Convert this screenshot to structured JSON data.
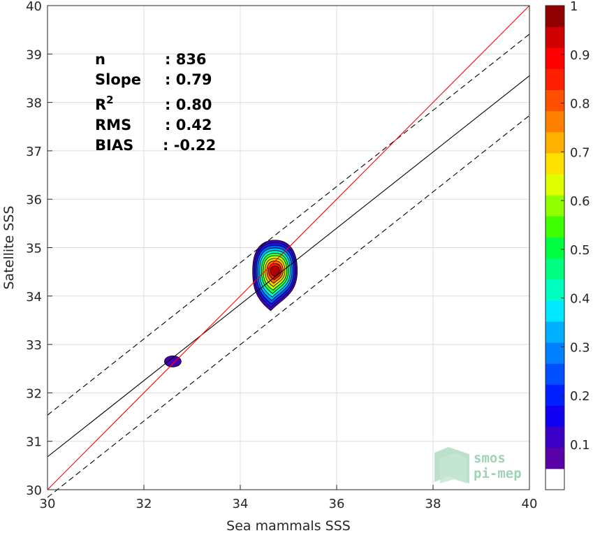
{
  "chart_data": {
    "type": "contour-density-scatter",
    "xlabel": "Sea mammals SSS",
    "ylabel": "Satellite SSS",
    "xlim": [
      30,
      40
    ],
    "ylim": [
      30,
      40
    ],
    "xticks": [
      "30",
      "32",
      "34",
      "36",
      "38",
      "40"
    ],
    "yticks": [
      "30",
      "31",
      "32",
      "33",
      "34",
      "35",
      "36",
      "37",
      "38",
      "39",
      "40"
    ],
    "grid": true,
    "stats": [
      {
        "label": "n",
        "value": ": 836"
      },
      {
        "label": "Slope",
        "value": ": 0.79"
      },
      {
        "label": "R",
        "sup": "2",
        "value": ": 0.80"
      },
      {
        "label": "RMS",
        "value": ": 0.42"
      },
      {
        "label": "BIAS",
        "value": ": -0.22"
      }
    ],
    "lines": {
      "identity": {
        "color": "#ff0000",
        "x": [
          30,
          40
        ],
        "y": [
          30,
          40
        ]
      },
      "regression": {
        "color": "#000000",
        "x": [
          30,
          40
        ],
        "y": [
          30.68,
          38.55
        ]
      },
      "upper_bound": {
        "color": "#000000",
        "dash": true,
        "x": [
          30,
          40
        ],
        "y": [
          31.54,
          39.41
        ]
      },
      "lower_bound": {
        "color": "#000000",
        "dash": true,
        "x": [
          30,
          40
        ],
        "y": [
          29.84,
          37.73
        ]
      }
    },
    "density_blobs": [
      {
        "cx": 34.72,
        "cy": 34.52,
        "peak": 1.0
      },
      {
        "cx": 32.6,
        "cy": 32.65,
        "peak": 0.1
      }
    ],
    "colorbar": {
      "ticks": [
        "0.1",
        "0.2",
        "0.3",
        "0.4",
        "0.5",
        "0.6",
        "0.7",
        "0.8",
        "0.9",
        "1"
      ],
      "colors": [
        "#ffffff",
        "#5b00a6",
        "#3a00c8",
        "#1000f0",
        "#0020ff",
        "#0050ff",
        "#0080ff",
        "#00b0ff",
        "#00e8ff",
        "#00ffc0",
        "#00ff80",
        "#00ff40",
        "#40ff00",
        "#90ff00",
        "#e0ff00",
        "#ffe000",
        "#ffb000",
        "#ff8000",
        "#ff5000",
        "#ff2000",
        "#ff0000",
        "#d00000",
        "#900000"
      ]
    }
  },
  "logo": {
    "line1": "smos",
    "line2": "pi-mep"
  }
}
